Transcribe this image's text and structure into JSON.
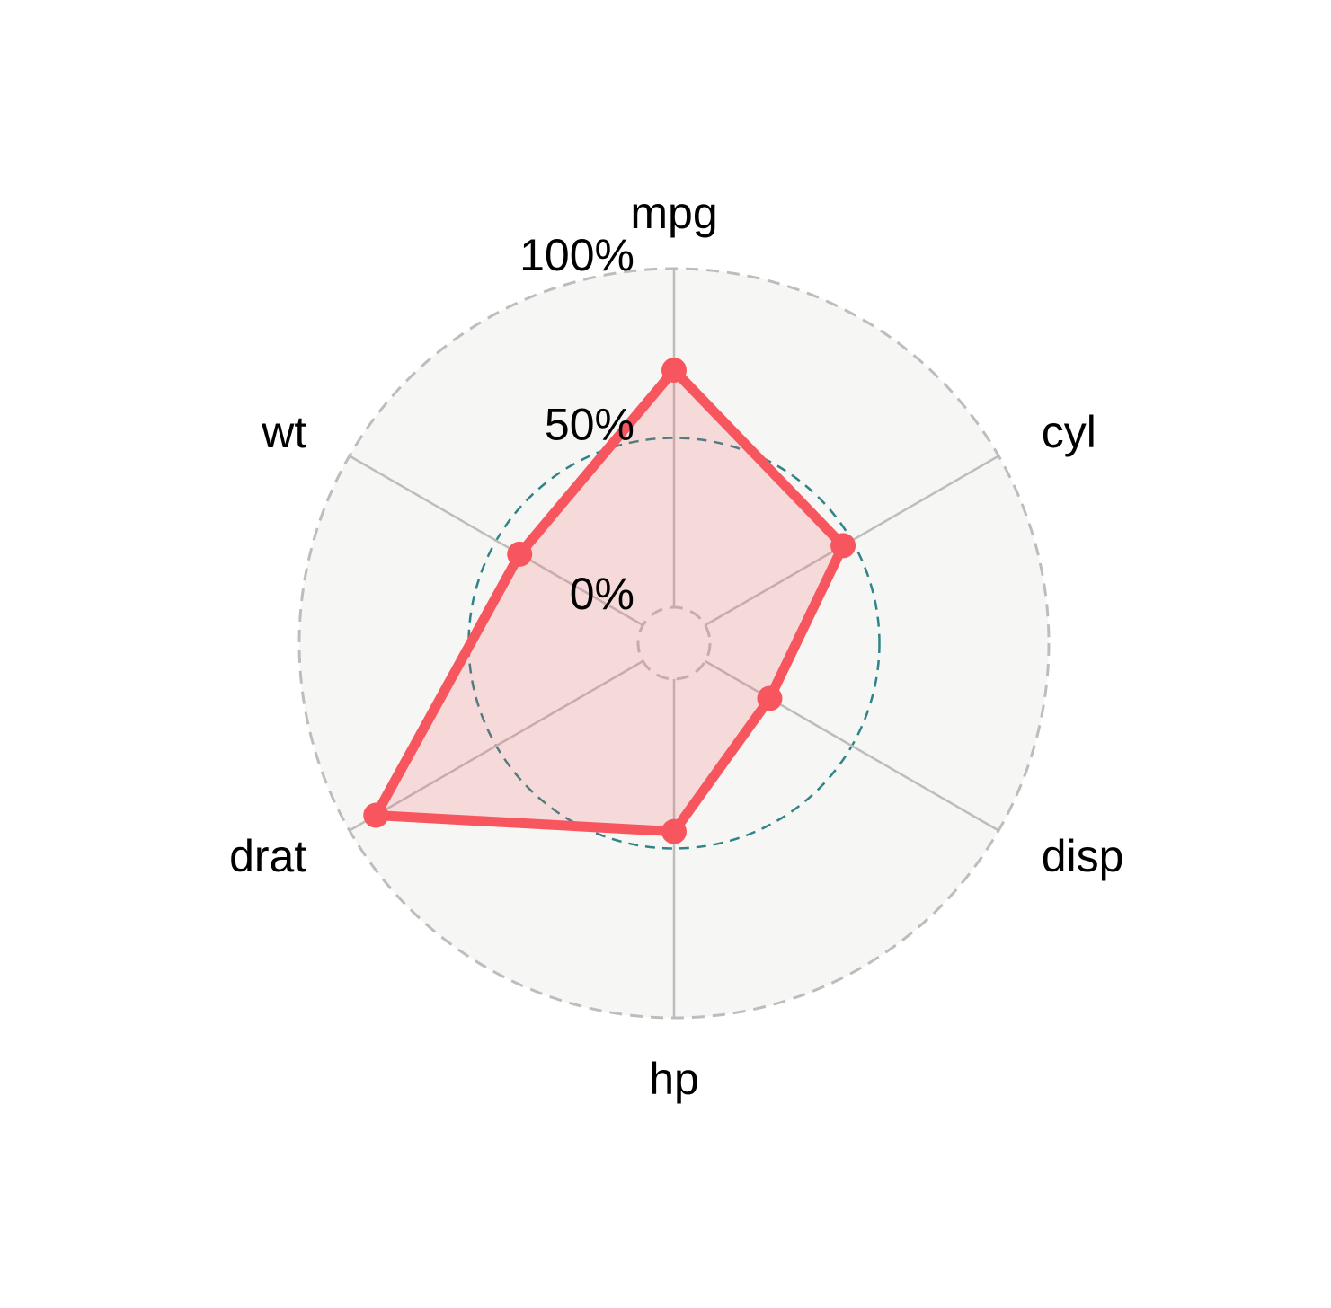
{
  "chart_data": {
    "type": "radar",
    "axes": [
      "mpg",
      "cyl",
      "disp",
      "hp",
      "drat",
      "wt"
    ],
    "series": [
      {
        "values": [
          0.7,
          0.47,
          0.22,
          0.45,
          0.91,
          0.42
        ]
      }
    ],
    "grid_levels": [
      {
        "value": 0.0,
        "label": "0%"
      },
      {
        "value": 0.5,
        "label": "50%"
      },
      {
        "value": 1.0,
        "label": "100%"
      }
    ],
    "ylim": [
      0,
      1
    ],
    "legend": "none",
    "colors": {
      "series_line": "#F8565F",
      "series_fill": "#F8565F",
      "panel_fill": "#F6F6F4",
      "outer_grid": "#BDBDBD",
      "mid_grid": "#2F8488",
      "axis_line": "#BDBDBD",
      "background": "#FFFFFF"
    }
  }
}
